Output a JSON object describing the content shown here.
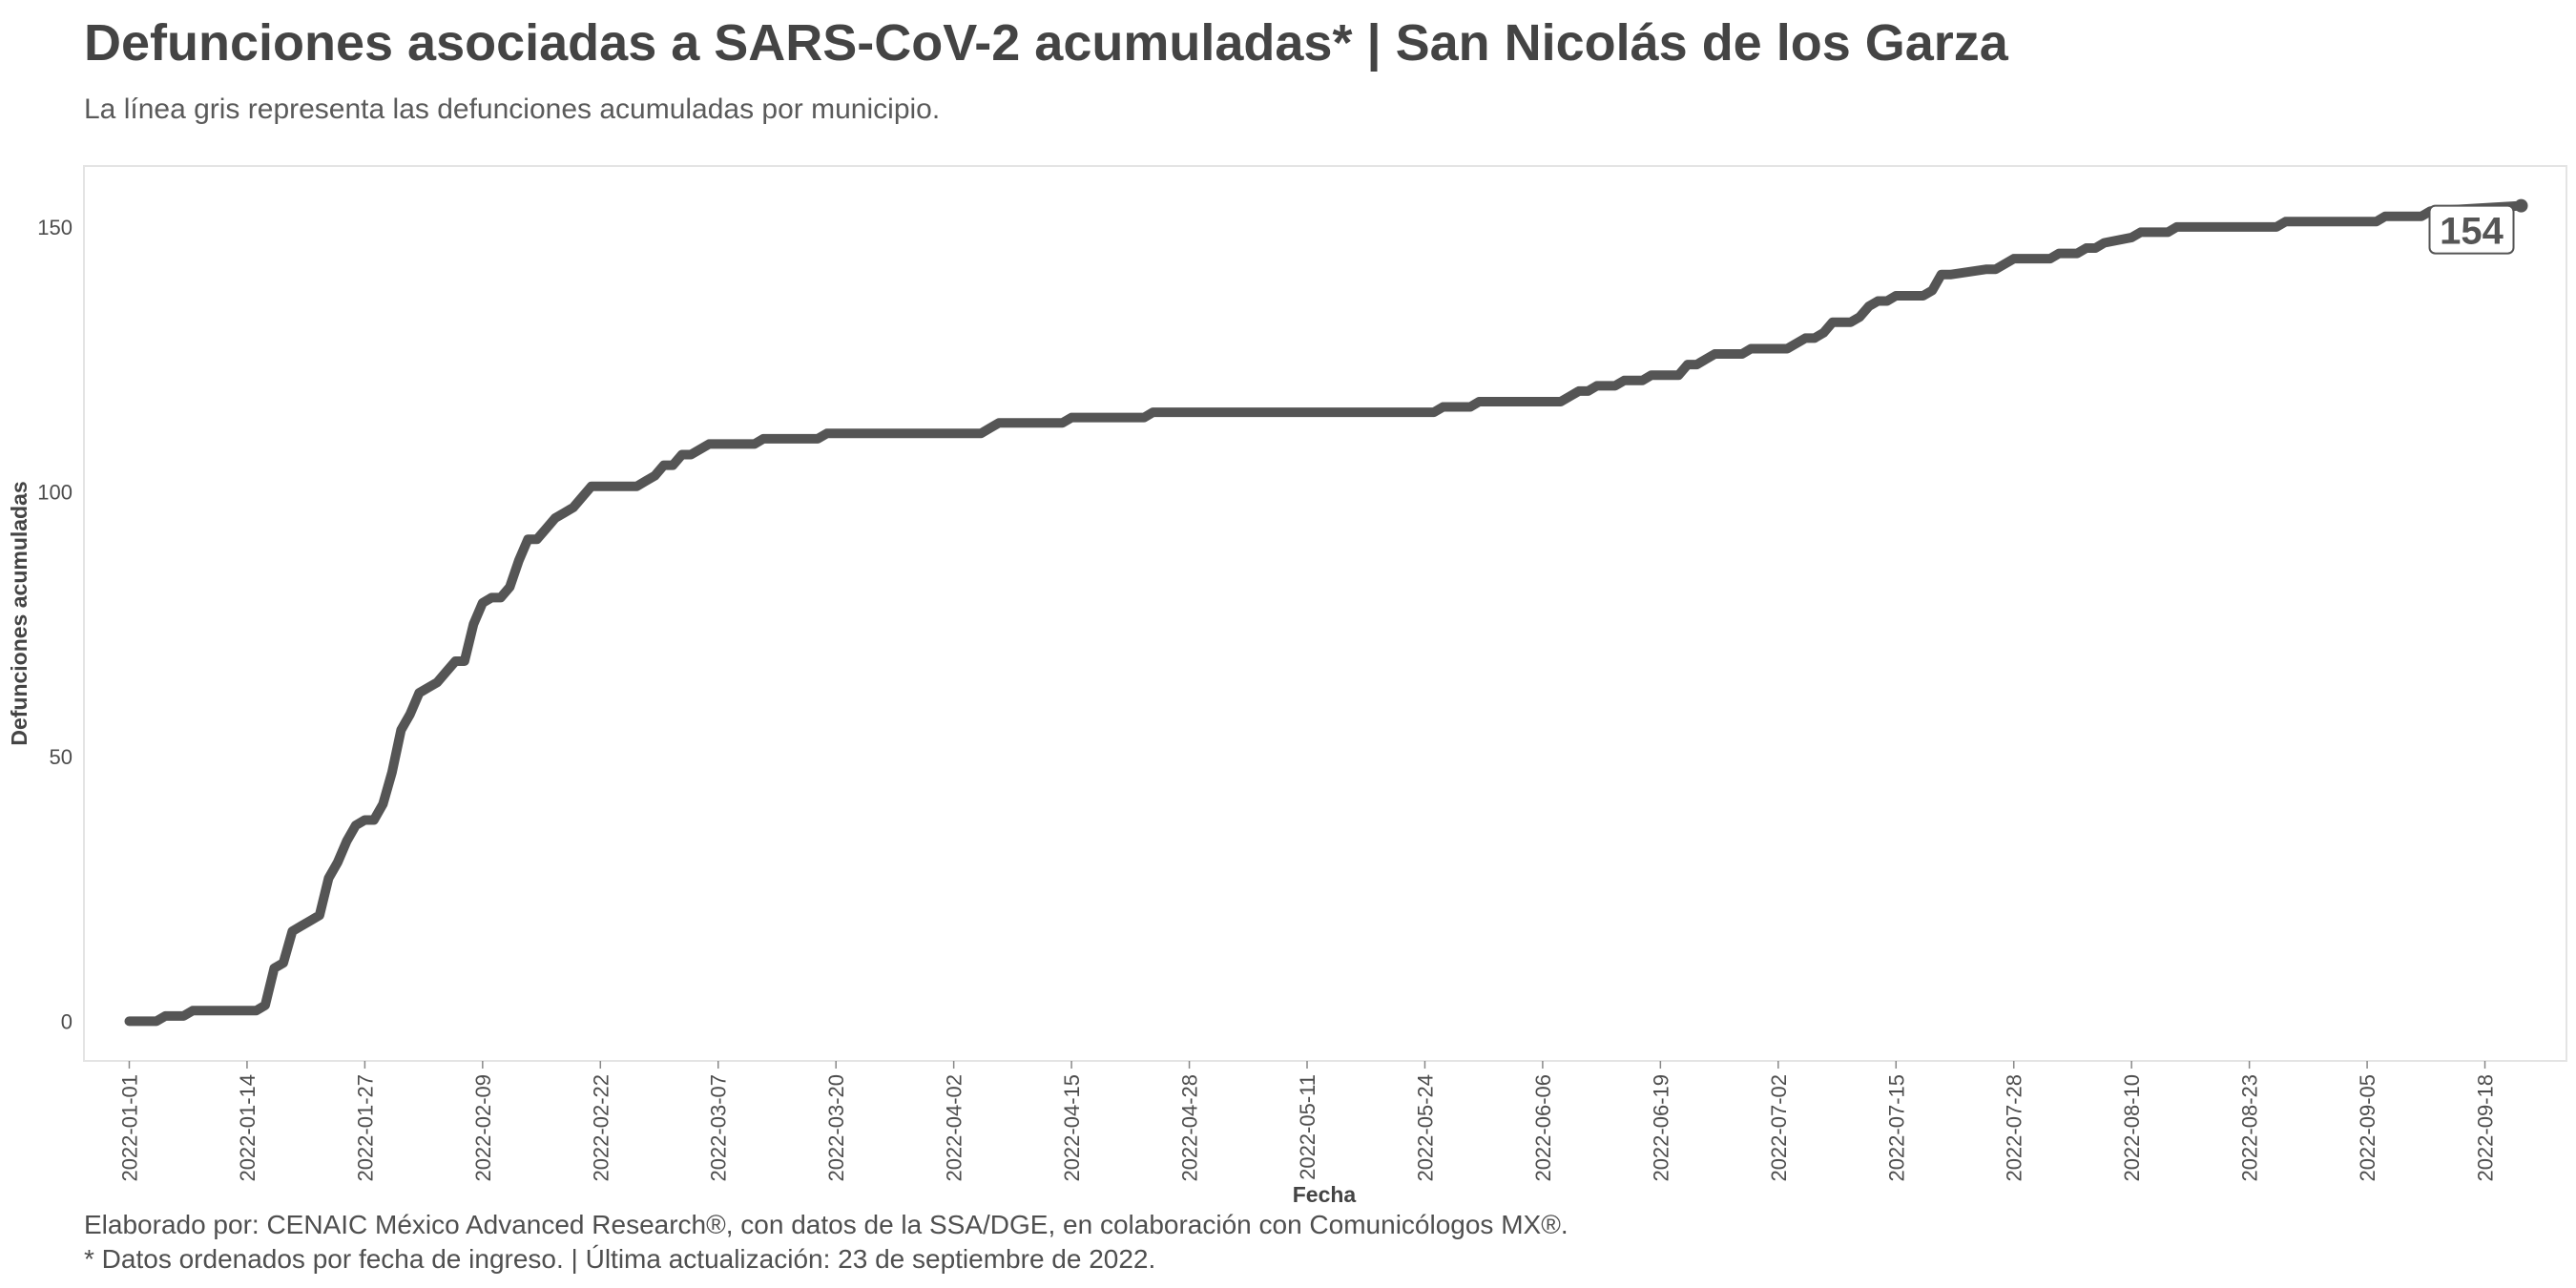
{
  "chart_data": {
    "type": "line",
    "title": "Defunciones asociadas a SARS-CoV-2 acumuladas* | San Nicolás de los Garza",
    "subtitle": "La línea gris representa las defunciones acumuladas por municipio.",
    "xlabel": "Fecha",
    "ylabel": "Defunciones acumuladas",
    "ylim": [
      -7.5,
      161.5
    ],
    "xlim": [
      "2021-12-27",
      "2022-09-27"
    ],
    "y_ticks": [
      0,
      50,
      100,
      150
    ],
    "x_ticks": [
      "2022-01-01",
      "2022-01-14",
      "2022-01-27",
      "2022-02-09",
      "2022-02-22",
      "2022-03-07",
      "2022-03-20",
      "2022-04-02",
      "2022-04-15",
      "2022-04-28",
      "2022-05-11",
      "2022-05-24",
      "2022-06-06",
      "2022-06-19",
      "2022-07-02",
      "2022-07-15",
      "2022-07-28",
      "2022-08-10",
      "2022-08-23",
      "2022-09-05",
      "2022-09-18"
    ],
    "grid": false,
    "line_color": "#555555",
    "end_label": "154",
    "series": [
      {
        "x": [
          "2022-01-01",
          "2022-01-04",
          "2022-01-05",
          "2022-01-07",
          "2022-01-08",
          "2022-01-15",
          "2022-01-16",
          "2022-01-17",
          "2022-01-18",
          "2022-01-19",
          "2022-01-20",
          "2022-01-21",
          "2022-01-22",
          "2022-01-23",
          "2022-01-24",
          "2022-01-25",
          "2022-01-26",
          "2022-01-27",
          "2022-01-28",
          "2022-01-29",
          "2022-01-30",
          "2022-01-31",
          "2022-02-01",
          "2022-02-02",
          "2022-02-03",
          "2022-02-04",
          "2022-02-05",
          "2022-02-06",
          "2022-02-07",
          "2022-02-08",
          "2022-02-09",
          "2022-02-10",
          "2022-02-11",
          "2022-02-12",
          "2022-02-13",
          "2022-02-14",
          "2022-02-15",
          "2022-02-16",
          "2022-02-17",
          "2022-02-18",
          "2022-02-19",
          "2022-02-20",
          "2022-02-21",
          "2022-02-22",
          "2022-02-23",
          "2022-02-26",
          "2022-02-27",
          "2022-02-28",
          "2022-03-01",
          "2022-03-02",
          "2022-03-03",
          "2022-03-04",
          "2022-03-05",
          "2022-03-06",
          "2022-03-07",
          "2022-03-11",
          "2022-03-12",
          "2022-03-18",
          "2022-03-19",
          "2022-04-05",
          "2022-04-06",
          "2022-04-07",
          "2022-04-12",
          "2022-04-13",
          "2022-04-14",
          "2022-04-15",
          "2022-04-22",
          "2022-04-23",
          "2022-04-24",
          "2022-05-25",
          "2022-05-26",
          "2022-05-29",
          "2022-05-30",
          "2022-06-08",
          "2022-06-09",
          "2022-06-10",
          "2022-06-11",
          "2022-06-12",
          "2022-06-14",
          "2022-06-15",
          "2022-06-16",
          "2022-06-17",
          "2022-06-18",
          "2022-06-21",
          "2022-06-22",
          "2022-06-23",
          "2022-06-24",
          "2022-06-25",
          "2022-06-28",
          "2022-06-29",
          "2022-07-03",
          "2022-07-04",
          "2022-07-05",
          "2022-07-06",
          "2022-07-07",
          "2022-07-08",
          "2022-07-10",
          "2022-07-11",
          "2022-07-12",
          "2022-07-13",
          "2022-07-14",
          "2022-07-15",
          "2022-07-18",
          "2022-07-19",
          "2022-07-20",
          "2022-07-21",
          "2022-07-25",
          "2022-07-26",
          "2022-07-27",
          "2022-07-28",
          "2022-08-01",
          "2022-08-02",
          "2022-08-03",
          "2022-08-04",
          "2022-08-05",
          "2022-08-06",
          "2022-08-07",
          "2022-08-10",
          "2022-08-11",
          "2022-08-14",
          "2022-08-15",
          "2022-08-26",
          "2022-08-27",
          "2022-09-06",
          "2022-09-07",
          "2022-09-11",
          "2022-09-12",
          "2022-09-22"
        ],
        "y": [
          0,
          0,
          1,
          1,
          2,
          2,
          3,
          10,
          11,
          17,
          18,
          19,
          20,
          27,
          30,
          34,
          37,
          38,
          38,
          41,
          47,
          55,
          58,
          62,
          63,
          64,
          66,
          68,
          68,
          75,
          79,
          80,
          80,
          82,
          87,
          91,
          91,
          93,
          95,
          96,
          97,
          99,
          101,
          101,
          101,
          101,
          102,
          103,
          105,
          105,
          107,
          107,
          108,
          109,
          109,
          109,
          110,
          110,
          111,
          111,
          112,
          113,
          113,
          113,
          113,
          114,
          114,
          114,
          115,
          115,
          116,
          116,
          117,
          117,
          118,
          119,
          119,
          120,
          120,
          121,
          121,
          121,
          122,
          122,
          124,
          124,
          125,
          126,
          126,
          127,
          127,
          128,
          129,
          129,
          130,
          132,
          132,
          133,
          135,
          136,
          136,
          137,
          137,
          138,
          141,
          141,
          142,
          142,
          143,
          144,
          144,
          145,
          145,
          145,
          146,
          146,
          147,
          148,
          149,
          149,
          150,
          150,
          151,
          151,
          152,
          152,
          153,
          154
        ]
      }
    ]
  },
  "footer": {
    "line1": "Elaborado por: CENAIC México Advanced Research®, con datos de la SSA/DGE, en colaboración con Comunicólogos MX®.",
    "line2": "* Datos ordenados por fecha de ingreso. | Última actualización: 23 de septiembre de 2022."
  }
}
